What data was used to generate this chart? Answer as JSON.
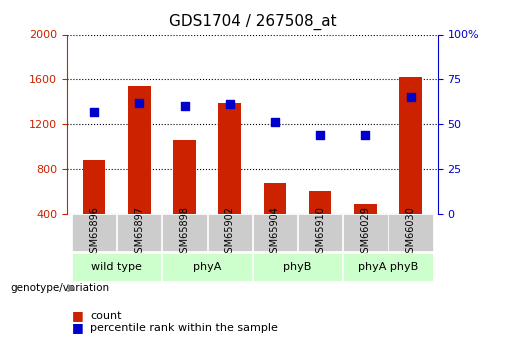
{
  "title": "GDS1704 / 267508_at",
  "samples": [
    "GSM65896",
    "GSM65897",
    "GSM65898",
    "GSM65902",
    "GSM65904",
    "GSM65910",
    "GSM66029",
    "GSM66030"
  ],
  "counts": [
    880,
    1540,
    1060,
    1390,
    680,
    600,
    490,
    1620
  ],
  "percentile_ranks": [
    57,
    62,
    60,
    61,
    51,
    44,
    44,
    65
  ],
  "groups": [
    {
      "label": "wild type",
      "color": "#ccffcc",
      "start": 0,
      "end": 2
    },
    {
      "label": "phyA",
      "color": "#ccffcc",
      "start": 2,
      "end": 4
    },
    {
      "label": "phyB",
      "color": "#ccffcc",
      "start": 4,
      "end": 6
    },
    {
      "label": "phyA phyB",
      "color": "#ccffcc",
      "start": 6,
      "end": 8
    }
  ],
  "ylim_left": [
    400,
    2000
  ],
  "ylim_right": [
    0,
    100
  ],
  "bar_color": "#cc2200",
  "dot_color": "#0000cc",
  "bar_bottom": 400,
  "grid_color": "#000000",
  "ylabel_left": "",
  "ylabel_right": "",
  "legend_count_label": "count",
  "legend_pct_label": "percentile rank within the sample",
  "bg_plot": "#ffffff",
  "bg_xtick": "#cccccc",
  "left_tick_color": "#cc2200",
  "right_tick_color": "#0000cc"
}
